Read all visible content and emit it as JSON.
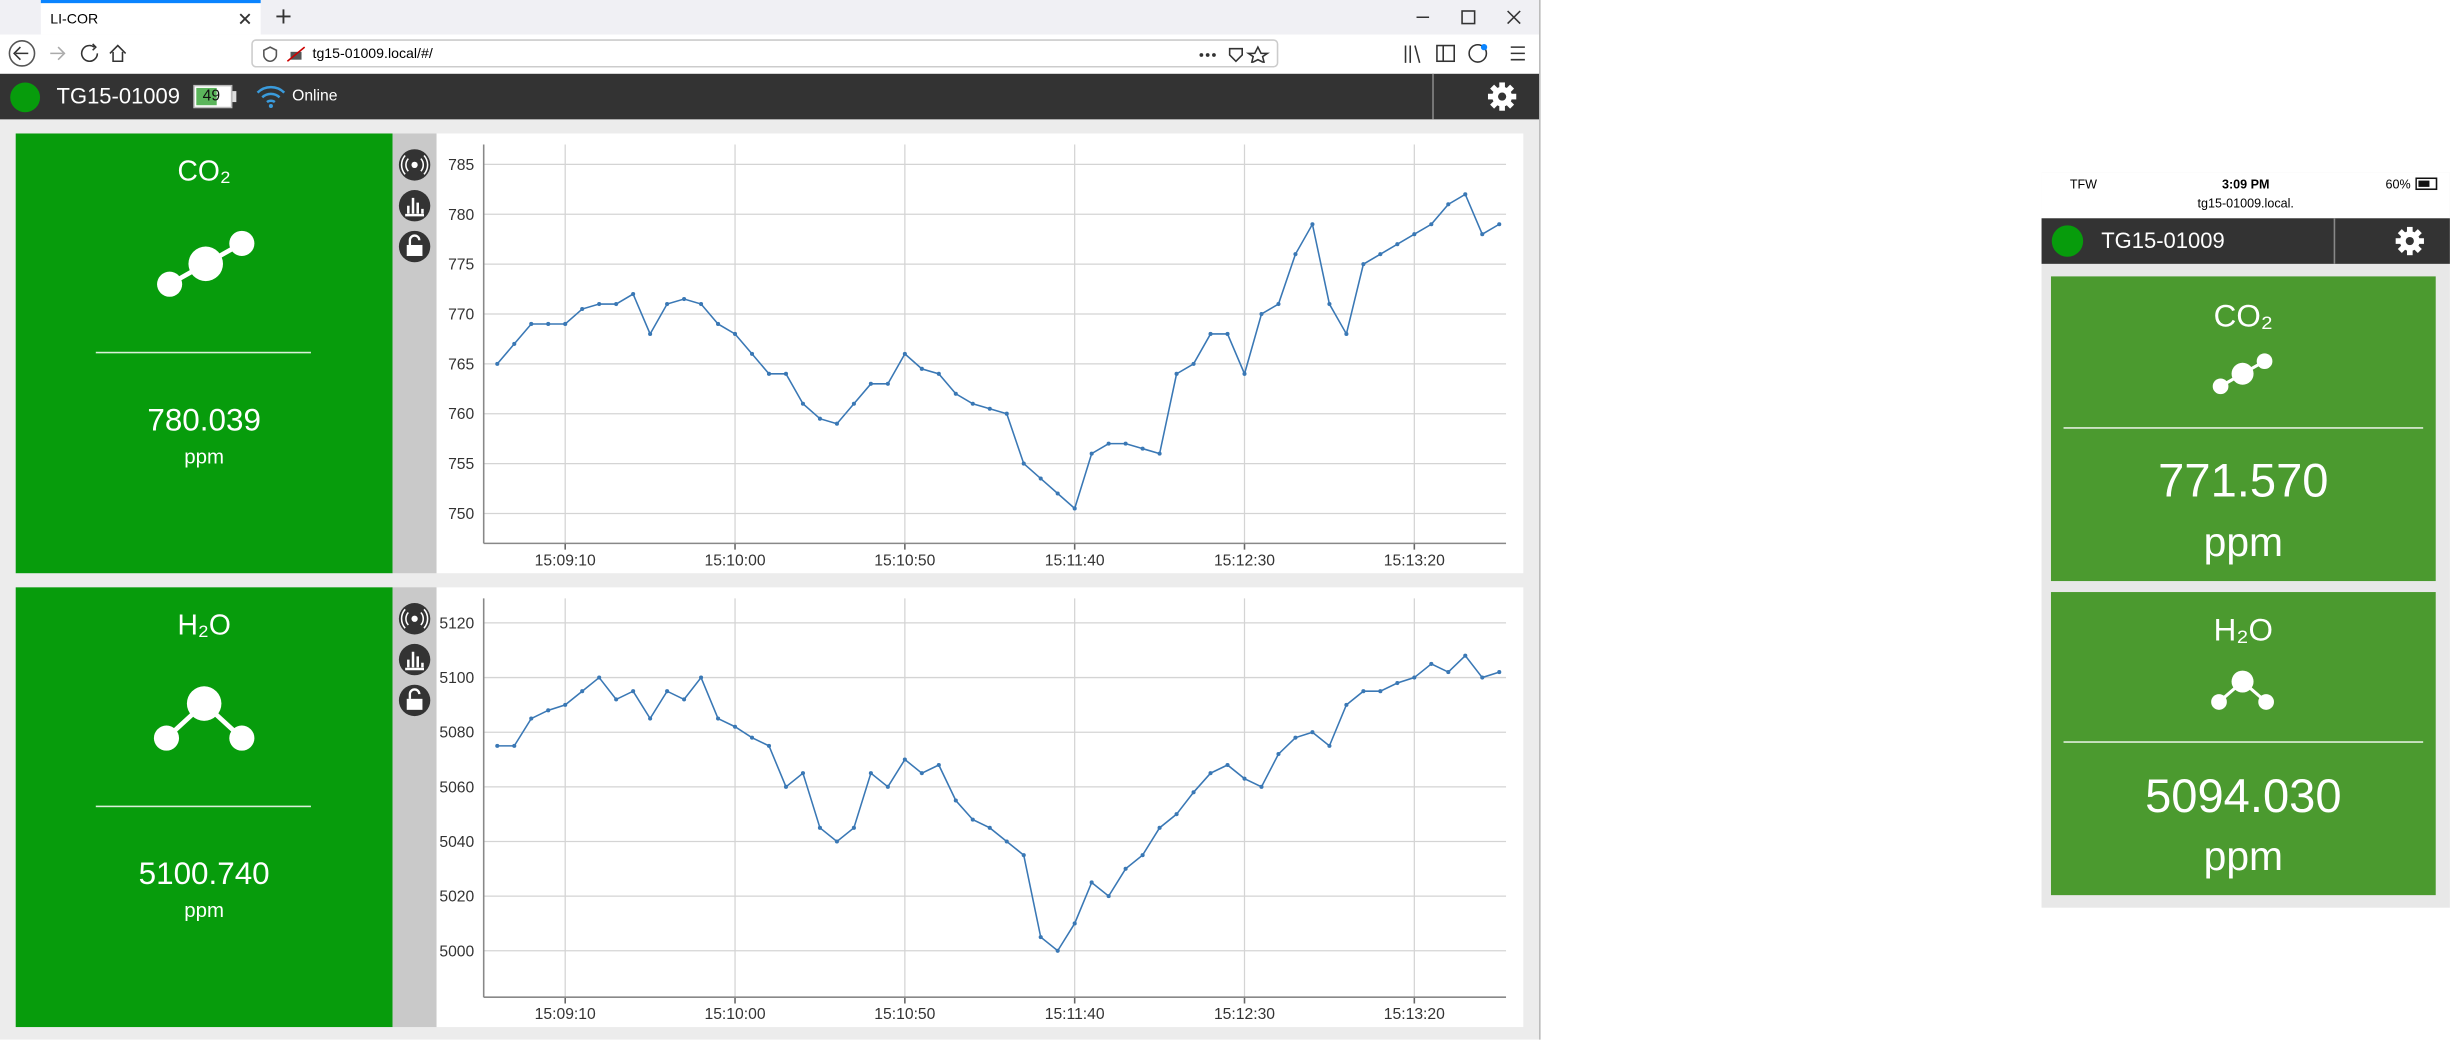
{
  "browser": {
    "tab_title": "LI-COR",
    "url": "tg15-01009.local/#/"
  },
  "header": {
    "device": "TG15-01009",
    "battery": "49",
    "status": "Online"
  },
  "panels": [
    {
      "gas": "CO₂",
      "value": "780.039",
      "unit": "ppm"
    },
    {
      "gas": "H₂O",
      "value": "5100.740",
      "unit": "ppm"
    }
  ],
  "phone": {
    "carrier": "TFW",
    "time": "3:09 PM",
    "battery": "60%",
    "url": "tg15-01009.local.",
    "device": "TG15-01009",
    "cards": [
      {
        "gas": "CO₂",
        "value": "771.570",
        "unit": "ppm"
      },
      {
        "gas": "H₂O",
        "value": "5094.030",
        "unit": "ppm"
      }
    ]
  },
  "chart_data": [
    {
      "type": "line",
      "grid": true,
      "markers": true,
      "x": [
        "15:08:50",
        "15:08:55",
        "15:09:00",
        "15:09:05",
        "15:09:10",
        "15:09:15",
        "15:09:20",
        "15:09:25",
        "15:09:30",
        "15:09:35",
        "15:09:40",
        "15:09:45",
        "15:09:50",
        "15:09:55",
        "15:10:00",
        "15:10:05",
        "15:10:10",
        "15:10:15",
        "15:10:20",
        "15:10:25",
        "15:10:30",
        "15:10:35",
        "15:10:40",
        "15:10:45",
        "15:10:50",
        "15:10:55",
        "15:11:00",
        "15:11:05",
        "15:11:10",
        "15:11:15",
        "15:11:20",
        "15:11:25",
        "15:11:30",
        "15:11:35",
        "15:11:40",
        "15:11:45",
        "15:11:50",
        "15:11:55",
        "15:12:00",
        "15:12:05",
        "15:12:10",
        "15:12:15",
        "15:12:20",
        "15:12:25",
        "15:12:30",
        "15:12:35",
        "15:12:40",
        "15:12:45",
        "15:12:50",
        "15:12:55",
        "15:13:00",
        "15:13:05",
        "15:13:10",
        "15:13:15",
        "15:13:20",
        "15:13:25",
        "15:13:30",
        "15:13:35",
        "15:13:40",
        "15:13:45"
      ],
      "series": [
        {
          "color": "#3a78b5",
          "values": [
            765,
            767,
            769,
            769,
            769,
            770.5,
            771,
            771,
            772,
            768,
            771,
            771.5,
            771,
            769,
            768,
            766,
            764,
            764,
            761,
            759.5,
            759,
            761,
            763,
            763,
            766,
            764.5,
            764,
            762,
            761,
            760.5,
            760,
            755,
            753.5,
            752,
            750.5,
            756,
            757,
            757,
            756.5,
            756,
            764,
            765,
            768,
            768,
            764,
            770,
            771,
            776,
            779,
            771,
            768,
            775,
            776,
            777,
            778,
            779,
            781,
            782,
            778,
            779
          ]
        }
      ],
      "xlim": [
        "15:08:46",
        "15:13:47"
      ],
      "xticks": [
        "15:09:10",
        "15:10:00",
        "15:10:50",
        "15:11:40",
        "15:12:30",
        "15:13:20"
      ],
      "ylim": [
        747,
        787
      ],
      "yticks": [
        750,
        755,
        760,
        765,
        770,
        775,
        780,
        785
      ]
    },
    {
      "type": "line",
      "grid": true,
      "markers": true,
      "x": [
        "15:08:50",
        "15:08:55",
        "15:09:00",
        "15:09:05",
        "15:09:10",
        "15:09:15",
        "15:09:20",
        "15:09:25",
        "15:09:30",
        "15:09:35",
        "15:09:40",
        "15:09:45",
        "15:09:50",
        "15:09:55",
        "15:10:00",
        "15:10:05",
        "15:10:10",
        "15:10:15",
        "15:10:20",
        "15:10:25",
        "15:10:30",
        "15:10:35",
        "15:10:40",
        "15:10:45",
        "15:10:50",
        "15:10:55",
        "15:11:00",
        "15:11:05",
        "15:11:10",
        "15:11:15",
        "15:11:20",
        "15:11:25",
        "15:11:30",
        "15:11:35",
        "15:11:40",
        "15:11:45",
        "15:11:50",
        "15:11:55",
        "15:12:00",
        "15:12:05",
        "15:12:10",
        "15:12:15",
        "15:12:20",
        "15:12:25",
        "15:12:30",
        "15:12:35",
        "15:12:40",
        "15:12:45",
        "15:12:50",
        "15:12:55",
        "15:13:00",
        "15:13:05",
        "15:13:10",
        "15:13:15",
        "15:13:20",
        "15:13:25",
        "15:13:30",
        "15:13:35",
        "15:13:40",
        "15:13:45"
      ],
      "series": [
        {
          "color": "#3a78b5",
          "values": [
            5075,
            5075,
            5085,
            5088,
            5090,
            5095,
            5100,
            5092,
            5095,
            5085,
            5095,
            5092,
            5100,
            5085,
            5082,
            5078,
            5075,
            5060,
            5065,
            5045,
            5040,
            5045,
            5065,
            5060,
            5070,
            5065,
            5068,
            5055,
            5048,
            5045,
            5040,
            5035,
            5005,
            5000,
            5010,
            5025,
            5020,
            5030,
            5035,
            5045,
            5050,
            5058,
            5065,
            5068,
            5063,
            5060,
            5072,
            5078,
            5080,
            5075,
            5090,
            5095,
            5095,
            5098,
            5100,
            5105,
            5102,
            5108,
            5100,
            5102
          ]
        }
      ],
      "xlim": [
        "15:08:46",
        "15:13:47"
      ],
      "xticks": [
        "15:09:10",
        "15:10:00",
        "15:10:50",
        "15:11:40",
        "15:12:30",
        "15:13:20"
      ],
      "ylim": [
        4983,
        5129
      ],
      "yticks": [
        5000,
        5020,
        5040,
        5060,
        5080,
        5100,
        5120
      ]
    }
  ]
}
